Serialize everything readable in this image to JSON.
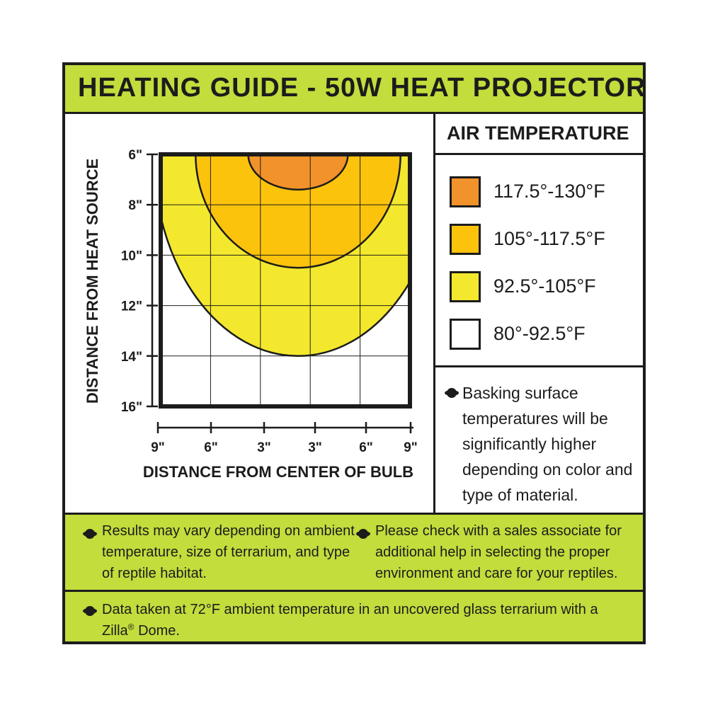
{
  "title": "HEATING GUIDE - 50W HEAT PROJECTOR",
  "colors": {
    "green": "#c2dd3c",
    "zone_hot": "#f2922a",
    "zone_warm": "#fcc30d",
    "zone_mild": "#f3e82d",
    "zone_cool": "#ffffff",
    "ink": "#1c1c1c"
  },
  "chart_data": {
    "type": "heatmap",
    "xlabel": "DISTANCE FROM CENTER OF BULB",
    "ylabel": "DISTANCE FROM HEAT SOURCE",
    "x_ticks": [
      "9\"",
      "6\"",
      "3\"",
      "3\"",
      "6\"",
      "9\""
    ],
    "y_ticks": [
      "6\"",
      "8\"",
      "10\"",
      "12\"",
      "14\"",
      "16\""
    ],
    "xlim": [
      -9,
      9
    ],
    "ylim": [
      6,
      16
    ],
    "zones": [
      {
        "label": "117.5°-130°F",
        "color": "#f2922a",
        "max_depth": 7.4,
        "half_width": 3.6
      },
      {
        "label": "105°-117.5°F",
        "color": "#fcc30d",
        "max_depth": 10.5,
        "half_width": 7.4
      },
      {
        "label": "92.5°-105°F",
        "color": "#f3e82d",
        "max_depth": 14,
        "half_width": 9
      },
      {
        "label": "80°-92.5°F",
        "color": "#ffffff",
        "max_depth": 16,
        "half_width": 9
      }
    ]
  },
  "legend": {
    "title": "AIR TEMPERATURE",
    "items": [
      {
        "label": "117.5°-130°F",
        "color": "#f2922a"
      },
      {
        "label": "105°-117.5°F",
        "color": "#fcc30d"
      },
      {
        "label": "92.5°-105°F",
        "color": "#f3e82d"
      },
      {
        "label": "80°-92.5°F",
        "color": "#ffffff"
      }
    ]
  },
  "notes": {
    "basking": "Basking surface temperatures will be significantly higher depending on color and type of material.",
    "results": "Results may vary depending on ambient temperature, size of terrarium, and type of reptile habitat.",
    "check": "Please check with a sales associate for additional help in selecting the proper environment and care for your reptiles.",
    "data_main": "Data taken at 72°F ambient temperature in an uncovered glass terrarium with a Zilla",
    "data_reg": "®",
    "data_end": " Dome."
  }
}
